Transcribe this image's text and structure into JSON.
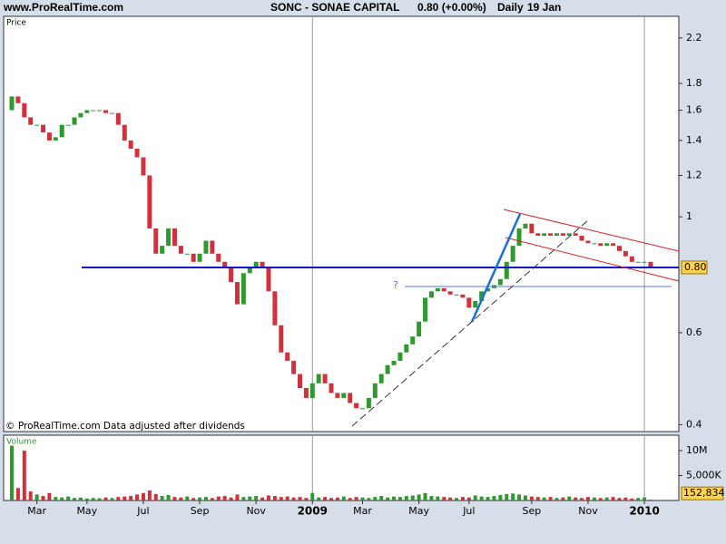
{
  "chart_data": {
    "type": "candlestick",
    "source": "www.ProRealTime.com",
    "title": "SONC - SONAE CAPITAL",
    "last_quote": "0.80 (+0.00%)",
    "period": "Daily",
    "date": "19 Jan",
    "y_label": "Price",
    "footnote": "© ProRealTime.com Data adjusted after dividends",
    "volume_label": "Volume",
    "annotation": "?",
    "log_scale": true,
    "up_color": "#2e9a2e",
    "down_color": "#d2303a",
    "categories": [
      null,
      null,
      null,
      null,
      "Mar",
      null,
      null,
      null,
      null,
      null,
      null,
      null,
      "May",
      null,
      null,
      null,
      null,
      null,
      null,
      null,
      null,
      "Jul",
      null,
      null,
      null,
      null,
      null,
      null,
      null,
      null,
      "Sep",
      null,
      null,
      null,
      null,
      null,
      null,
      null,
      null,
      "Nov",
      null,
      null,
      null,
      null,
      null,
      null,
      null,
      null,
      "2009",
      null,
      null,
      null,
      null,
      null,
      null,
      null,
      "Mar",
      null,
      null,
      null,
      null,
      null,
      null,
      null,
      null,
      "May",
      null,
      null,
      null,
      null,
      null,
      null,
      null,
      "Jul",
      null,
      null,
      null,
      null,
      null,
      null,
      null,
      null,
      null,
      "Sep",
      null,
      null,
      null,
      null,
      null,
      null,
      null,
      null,
      "Nov",
      null,
      null,
      null,
      null,
      null,
      null,
      null,
      null,
      "2010",
      null
    ],
    "open": [
      1.6,
      1.7,
      1.65,
      1.55,
      1.5,
      1.5,
      1.45,
      1.4,
      1.42,
      1.5,
      1.5,
      1.55,
      1.58,
      1.6,
      1.6,
      1.6,
      1.58,
      1.58,
      1.5,
      1.4,
      1.35,
      1.3,
      1.2,
      0.95,
      0.85,
      0.88,
      0.95,
      0.88,
      0.85,
      0.85,
      0.82,
      0.85,
      0.9,
      0.85,
      0.82,
      0.8,
      0.75,
      0.68,
      0.78,
      0.8,
      0.82,
      0.8,
      0.72,
      0.62,
      0.55,
      0.53,
      0.5,
      0.47,
      0.45,
      0.48,
      0.5,
      0.48,
      0.46,
      0.45,
      0.46,
      0.44,
      0.43,
      0.43,
      0.45,
      0.48,
      0.5,
      0.52,
      0.53,
      0.55,
      0.57,
      0.59,
      0.63,
      0.7,
      0.72,
      0.73,
      0.72,
      0.71,
      0.71,
      0.7,
      0.67,
      0.69,
      0.72,
      0.73,
      0.74,
      0.76,
      0.82,
      0.88,
      0.95,
      0.97,
      0.93,
      0.92,
      0.93,
      0.92,
      0.93,
      0.92,
      0.93,
      0.92,
      0.9,
      0.89,
      0.89,
      0.88,
      0.89,
      0.88,
      0.86,
      0.84,
      0.82,
      0.82,
      0.82
    ],
    "close": [
      1.7,
      1.65,
      1.55,
      1.5,
      1.5,
      1.45,
      1.4,
      1.42,
      1.5,
      1.5,
      1.55,
      1.58,
      1.6,
      1.6,
      1.6,
      1.58,
      1.58,
      1.5,
      1.4,
      1.35,
      1.3,
      1.2,
      0.95,
      0.85,
      0.88,
      0.95,
      0.88,
      0.85,
      0.85,
      0.82,
      0.85,
      0.9,
      0.85,
      0.82,
      0.8,
      0.75,
      0.68,
      0.78,
      0.8,
      0.82,
      0.8,
      0.72,
      0.62,
      0.55,
      0.53,
      0.5,
      0.47,
      0.45,
      0.48,
      0.5,
      0.48,
      0.46,
      0.45,
      0.46,
      0.44,
      0.43,
      0.43,
      0.45,
      0.48,
      0.5,
      0.52,
      0.53,
      0.55,
      0.57,
      0.59,
      0.63,
      0.7,
      0.72,
      0.73,
      0.72,
      0.71,
      0.71,
      0.7,
      0.67,
      0.69,
      0.72,
      0.73,
      0.74,
      0.76,
      0.82,
      0.88,
      0.95,
      0.97,
      0.93,
      0.92,
      0.93,
      0.92,
      0.93,
      0.92,
      0.93,
      0.92,
      0.9,
      0.89,
      0.89,
      0.88,
      0.89,
      0.88,
      0.86,
      0.84,
      0.82,
      0.82,
      0.82,
      0.8
    ],
    "volume": [
      11000000,
      2500000,
      10000000,
      1800000,
      1200000,
      900000,
      1500000,
      700000,
      600000,
      800000,
      500000,
      600000,
      400000,
      500000,
      450000,
      600000,
      500000,
      700000,
      800000,
      900000,
      1200000,
      1500000,
      2000000,
      1300000,
      900000,
      1100000,
      700000,
      600000,
      800000,
      500000,
      600000,
      700000,
      500000,
      800000,
      900000,
      600000,
      1200000,
      700000,
      800000,
      900000,
      600000,
      1000000,
      900000,
      700000,
      800000,
      600000,
      700000,
      500000,
      1500000,
      600000,
      700000,
      500000,
      600000,
      800000,
      500000,
      700000,
      600000,
      500000,
      700000,
      900000,
      600000,
      800000,
      700000,
      900000,
      1000000,
      1200000,
      1500000,
      900000,
      800000,
      700000,
      600000,
      500000,
      700000,
      600000,
      1000000,
      800000,
      700000,
      900000,
      1100000,
      1300000,
      1400000,
      1200000,
      1000000,
      800000,
      700000,
      600000,
      700000,
      500000,
      600000,
      800000,
      600000,
      500000,
      700000,
      600000,
      500000,
      600000,
      700000,
      500000,
      600000,
      400000,
      500000,
      600000,
      152834
    ],
    "ylim": [
      0.388,
      2.42
    ],
    "yticks": [
      0.4,
      0.6,
      1,
      1.2,
      1.4,
      1.6,
      1.8,
      2.2
    ],
    "last_price": {
      "value": 0.8,
      "label": "0.80"
    },
    "volume_lim": [
      0,
      13100000
    ],
    "volume_ticks": [
      {
        "value": 5000000,
        "label": "5,000K"
      },
      {
        "value": 10000000,
        "label": "10M"
      }
    ],
    "last_volume": {
      "value": 152834,
      "label": "152,834"
    }
  }
}
